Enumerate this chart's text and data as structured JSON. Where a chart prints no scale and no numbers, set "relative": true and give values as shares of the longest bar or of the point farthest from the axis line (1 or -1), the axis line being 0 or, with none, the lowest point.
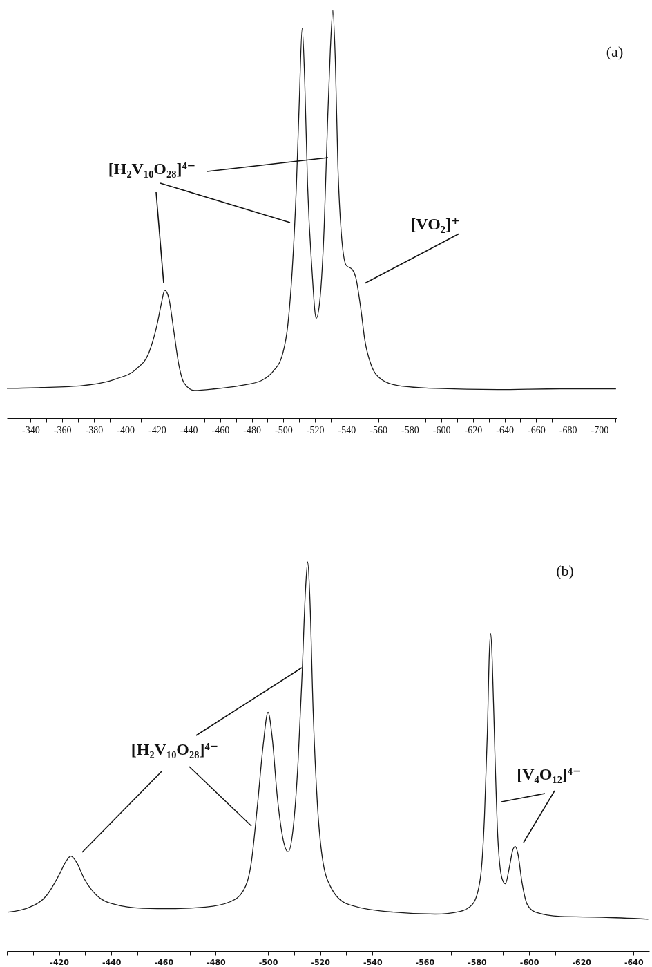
{
  "chart_data": [
    {
      "type": "line",
      "title": "(a)",
      "relative": true,
      "color": "#1a1a1a",
      "x": [
        -325.0,
        -346.6,
        -372.9,
        -393.9,
        -407.0,
        -414.9,
        -420.2,
        -422.8,
        -424.9,
        -427.5,
        -430.7,
        -433.8,
        -437.2,
        -443.8,
        -456.9,
        -472.7,
        -485.9,
        -493.7,
        -499.0,
        -502.9,
        -505.6,
        -508.2,
        -510.0,
        -511.9,
        -513.5,
        -515.3,
        -518.0,
        -520.8,
        -523.2,
        -525.8,
        -527.9,
        -529.7,
        -531.3,
        -532.9,
        -534.5,
        -536.6,
        -539.7,
        -543.7,
        -545.8,
        -548.9,
        -551.6,
        -555.5,
        -562.1,
        -572.6,
        -596.2,
        -635.7,
        -675.1,
        -710.5
      ],
      "values": [
        0.073,
        0.075,
        0.08,
        0.096,
        0.121,
        0.161,
        0.232,
        0.282,
        0.314,
        0.294,
        0.212,
        0.131,
        0.086,
        0.068,
        0.072,
        0.08,
        0.092,
        0.116,
        0.151,
        0.232,
        0.364,
        0.568,
        0.771,
        0.956,
        0.826,
        0.572,
        0.369,
        0.245,
        0.294,
        0.469,
        0.72,
        0.903,
        1.0,
        0.873,
        0.619,
        0.456,
        0.375,
        0.364,
        0.345,
        0.271,
        0.19,
        0.131,
        0.095,
        0.08,
        0.073,
        0.07,
        0.072,
        0.072
      ],
      "xlim": [
        -325,
        -711
      ],
      "xticks": [
        {
          "value": -330,
          "label": null
        },
        -340,
        {
          "value": -350,
          "label": null
        },
        -360,
        {
          "value": -370,
          "label": null
        },
        -380,
        {
          "value": -390,
          "label": null
        },
        -400,
        {
          "value": -410,
          "label": null
        },
        -420,
        {
          "value": -430,
          "label": null
        },
        -440,
        {
          "value": -450,
          "label": null
        },
        -460,
        {
          "value": -470,
          "label": null
        },
        -480,
        {
          "value": -490,
          "label": null
        },
        -500,
        {
          "value": -510,
          "label": null
        },
        -520,
        {
          "value": -530,
          "label": null
        },
        -540,
        {
          "value": -550,
          "label": null
        },
        -560,
        {
          "value": -570,
          "label": null
        },
        -580,
        {
          "value": -590,
          "label": null
        },
        -600,
        {
          "value": -610,
          "label": null
        },
        -620,
        {
          "value": -630,
          "label": null
        },
        -640,
        {
          "value": -650,
          "label": null
        },
        -660,
        {
          "value": -670,
          "label": null
        },
        -680,
        {
          "value": -690,
          "label": null
        },
        -700,
        {
          "value": -710,
          "label": null
        }
      ],
      "annotations": [
        "[H₂V₁₀O₂₈]⁴⁻",
        "[VO₂]⁺"
      ]
    },
    {
      "type": "line",
      "title": "(b)",
      "relative": true,
      "color": "#1a1a1a",
      "x": [
        -400.5,
        -408.8,
        -415.2,
        -420.0,
        -422.4,
        -424.5,
        -426.7,
        -429.6,
        -434.4,
        -440.8,
        -452.0,
        -463.2,
        -476.0,
        -485.6,
        -490.4,
        -493.6,
        -496.0,
        -498.1,
        -500.0,
        -501.6,
        -503.5,
        -505.6,
        -507.7,
        -509.6,
        -511.5,
        -513.1,
        -514.4,
        -515.2,
        -516.0,
        -517.3,
        -518.9,
        -520.8,
        -524.0,
        -530.4,
        -548.0,
        -564.0,
        -573.6,
        -578.4,
        -581.3,
        -582.9,
        -584.0,
        -584.8,
        -585.3,
        -585.9,
        -586.9,
        -588.0,
        -589.6,
        -590.9,
        -592.5,
        -593.8,
        -594.7,
        -595.7,
        -597.3,
        -599.2,
        -602.4,
        -612.0,
        -628.0,
        -645.6
      ],
      "values": [
        0.1,
        0.113,
        0.143,
        0.196,
        0.228,
        0.244,
        0.228,
        0.186,
        0.143,
        0.121,
        0.11,
        0.109,
        0.113,
        0.127,
        0.154,
        0.228,
        0.378,
        0.527,
        0.614,
        0.549,
        0.4,
        0.293,
        0.255,
        0.314,
        0.485,
        0.72,
        0.934,
        1.0,
        0.913,
        0.614,
        0.379,
        0.24,
        0.165,
        0.121,
        0.1,
        0.095,
        0.102,
        0.121,
        0.186,
        0.346,
        0.56,
        0.773,
        0.816,
        0.742,
        0.507,
        0.293,
        0.187,
        0.173,
        0.218,
        0.261,
        0.269,
        0.25,
        0.175,
        0.121,
        0.1,
        0.089,
        0.087,
        0.082
      ],
      "xlim": [
        -400,
        -646
      ],
      "xticks": [
        {
          "value": -400,
          "label": null
        },
        {
          "value": -410,
          "label": null
        },
        -420,
        {
          "value": -430,
          "label": null
        },
        -440,
        {
          "value": -450,
          "label": null
        },
        -460,
        {
          "value": -470,
          "label": null
        },
        -480,
        {
          "value": -490,
          "label": null
        },
        -500,
        {
          "value": -510,
          "label": null
        },
        -520,
        {
          "value": -530,
          "label": null
        },
        -540,
        {
          "value": -550,
          "label": null
        },
        -560,
        {
          "value": -570,
          "label": null
        },
        -580,
        {
          "value": -590,
          "label": null
        },
        -600,
        {
          "value": -610,
          "label": null
        },
        -620,
        {
          "value": -630,
          "label": null
        },
        -640
      ],
      "annotations": [
        "[H₂V₁₀O₂₈]⁴⁻",
        "[V₄O₁₂]⁴⁻"
      ]
    }
  ]
}
